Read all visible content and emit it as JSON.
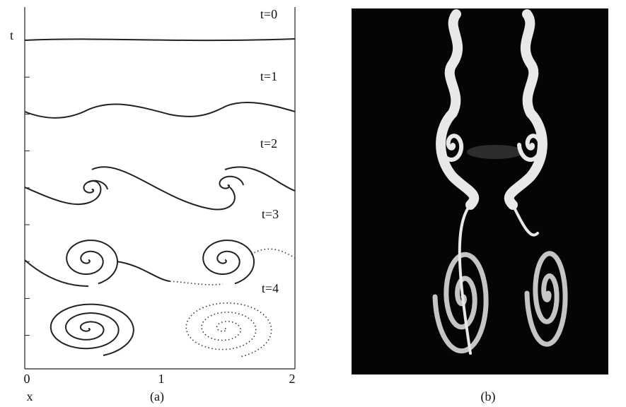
{
  "panel_a": {
    "y_label": "t",
    "x_label": "x",
    "x_ticks": [
      "0",
      "1",
      "2"
    ],
    "time_labels": [
      "t=0",
      "t=1",
      "t=2",
      "t=3",
      "t=4"
    ],
    "caption": "(a)"
  },
  "panel_b": {
    "caption": "(b)"
  }
}
